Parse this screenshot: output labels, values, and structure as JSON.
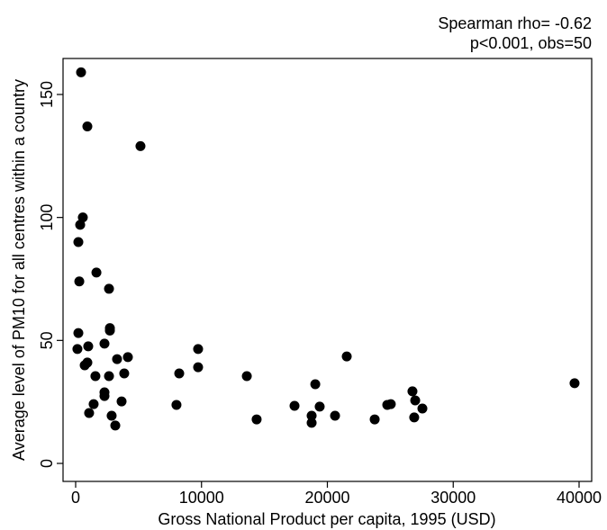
{
  "chart_data": {
    "type": "scatter",
    "annotation": [
      "Spearman rho= -0.62",
      "p<0.001, obs=50"
    ],
    "x_label": "Gross National Product per capita, 1995 (USD)",
    "y_label": "Average level of PM10 for all centres within a country",
    "xlim": [
      0,
      40000
    ],
    "ylim": [
      0,
      150
    ],
    "xticks": [
      0,
      10000,
      20000,
      30000,
      40000
    ],
    "yticks": [
      0,
      50,
      100,
      150
    ],
    "color": "#000000",
    "x": [
      430,
      930,
      5150,
      570,
      360,
      215,
      290,
      1650,
      2650,
      215,
      2720,
      2720,
      140,
      1000,
      2290,
      4150,
      3290,
      720,
      930,
      3860,
      1570,
      2650,
      2290,
      2290,
      3650,
      1430,
      1070,
      2860,
      3150,
      8010,
      8230,
      9730,
      9730,
      13600,
      14380,
      17390,
      18750,
      18750,
      19040,
      19390,
      20610,
      21540,
      23760,
      24760,
      25040,
      26760,
      26980,
      26900,
      27550,
      39640
    ],
    "values": [
      159,
      137,
      129,
      100,
      97,
      90,
      74,
      77.6,
      71,
      53,
      55,
      54,
      46.5,
      47.6,
      48.7,
      43.2,
      42.4,
      39.9,
      41,
      36.6,
      35.5,
      35.5,
      28.9,
      27.4,
      25.2,
      24.1,
      20.5,
      19.4,
      15.4,
      23.8,
      36.6,
      46.5,
      39.1,
      35.5,
      17.9,
      23.4,
      19.4,
      16.5,
      32.2,
      23.1,
      19.4,
      43.5,
      17.9,
      23.8,
      24.1,
      29.3,
      25.6,
      18.7,
      22.3,
      32.6
    ]
  }
}
